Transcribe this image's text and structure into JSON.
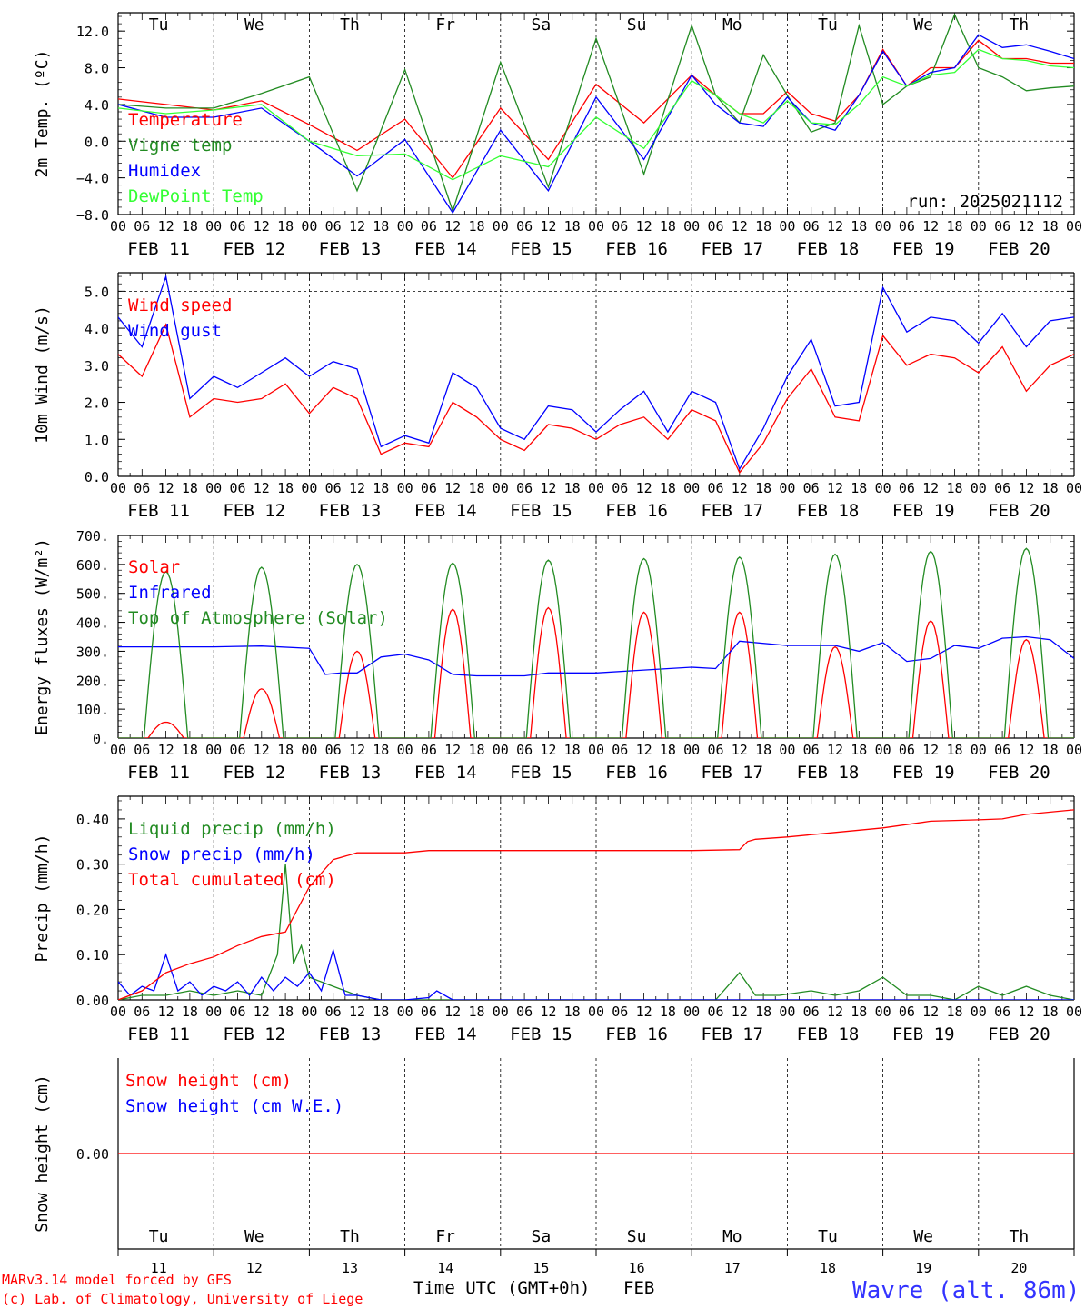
{
  "x_axis": {
    "hour_ticks": [
      "00",
      "06",
      "12",
      "18"
    ],
    "final_tick": "00",
    "dates": [
      "FEB 11",
      "FEB 12",
      "FEB 13",
      "FEB 14",
      "FEB 15",
      "FEB 16",
      "FEB 17",
      "FEB 18",
      "FEB 19",
      "FEB 20"
    ],
    "weekdays": [
      "Tu",
      "We",
      "Th",
      "Fr",
      "Sa",
      "Su",
      "Mo",
      "Tu",
      "We",
      "Th"
    ],
    "weekend_color": "#ff0000",
    "day_numbers": [
      "11",
      "12",
      "13",
      "14",
      "15",
      "16",
      "17",
      "18",
      "19",
      "20"
    ],
    "time_label": "Time UTC (GMT+0h)",
    "month_label": "FEB"
  },
  "footer": {
    "model": "MARv3.14 model forced by GFS",
    "credit": "(c) Lab. of Climatology, University of Liege",
    "station": "Wavre (alt. 86m)"
  },
  "colors": {
    "red": "#ff0000",
    "green": "#228b22",
    "blue": "#0000ff",
    "light_green": "#33ff33",
    "axis": "#000000"
  },
  "chart_data": [
    {
      "type": "line",
      "id": "temperature",
      "ylabel": "2m Temp. (ºC)",
      "ylim": [
        -8,
        14
      ],
      "ytick_values": [
        -8,
        -4,
        0,
        4,
        8,
        12
      ],
      "ytick_labels": [
        "−8.0",
        "−4.0",
        "0.0",
        "4.0",
        "8.0",
        "12.0"
      ],
      "dashed_hlines": [
        0
      ],
      "annotation": "run: 2025021112",
      "x_hours": [
        0,
        12,
        24,
        36,
        48,
        60,
        72,
        84,
        96,
        108,
        120,
        132,
        144,
        150,
        156,
        162,
        168,
        174,
        180,
        186,
        192,
        198,
        204,
        210,
        216,
        222,
        228,
        234,
        240
      ],
      "series": [
        {
          "name": "Temperature",
          "color": "#ff0000",
          "values": [
            4.6,
            4.0,
            3.4,
            4.4,
            1.8,
            -1.0,
            2.4,
            -4.0,
            3.6,
            -2.0,
            6.2,
            2.0,
            7.2,
            5.0,
            3.0,
            3.0,
            5.4,
            3.0,
            2.2,
            5.0,
            10.0,
            6.0,
            8.0,
            8.0,
            11.0,
            9.0,
            9.0,
            8.5,
            8.5
          ]
        },
        {
          "name": "Vigne temp",
          "color": "#228b22",
          "values": [
            4.0,
            3.6,
            3.6,
            5.2,
            7.0,
            -5.4,
            7.8,
            -7.6,
            8.6,
            -5.0,
            11.2,
            -3.6,
            12.6,
            5.0,
            2.0,
            9.4,
            5.0,
            1.0,
            2.0,
            12.6,
            4.0,
            6.0,
            7.0,
            13.8,
            8.0,
            7.0,
            5.5,
            5.8,
            6.0
          ]
        },
        {
          "name": "Humidex",
          "color": "#0000ff",
          "values": [
            4.0,
            2.6,
            2.6,
            3.6,
            0.0,
            -3.8,
            0.2,
            -7.8,
            1.2,
            -5.4,
            4.8,
            -2.0,
            7.2,
            4.0,
            2.0,
            1.6,
            4.8,
            2.0,
            1.2,
            5.0,
            9.8,
            6.0,
            7.5,
            8.0,
            11.6,
            10.2,
            10.5,
            9.8,
            9.0
          ]
        },
        {
          "name": "DewPoint Temp",
          "color": "#33ff33",
          "values": [
            3.6,
            3.0,
            3.4,
            4.0,
            0.0,
            -1.6,
            -1.4,
            -4.2,
            -1.6,
            -2.8,
            2.6,
            -0.8,
            6.6,
            5.0,
            3.0,
            2.0,
            4.4,
            2.0,
            1.8,
            4.0,
            7.0,
            6.0,
            7.2,
            7.5,
            10.0,
            9.0,
            8.8,
            8.2,
            8.0
          ]
        }
      ]
    },
    {
      "type": "line",
      "id": "wind",
      "ylabel": "10m Wind (m/s)",
      "ylim": [
        0,
        5.5
      ],
      "ytick_values": [
        0,
        1,
        2,
        3,
        4,
        5
      ],
      "ytick_labels": [
        "0.0",
        "1.0",
        "2.0",
        "3.0",
        "4.0",
        "5.0"
      ],
      "dashed_hlines": [
        5
      ],
      "x_hours": [
        0,
        6,
        12,
        18,
        24,
        30,
        36,
        42,
        48,
        54,
        60,
        66,
        72,
        78,
        84,
        90,
        96,
        102,
        108,
        114,
        120,
        126,
        132,
        138,
        144,
        150,
        156,
        162,
        168,
        174,
        180,
        186,
        192,
        198,
        204,
        210,
        216,
        222,
        228,
        234,
        240
      ],
      "series": [
        {
          "name": "Wind speed",
          "color": "#ff0000",
          "values": [
            3.3,
            2.7,
            4.1,
            1.6,
            2.1,
            2.0,
            2.1,
            2.5,
            1.7,
            2.4,
            2.1,
            0.6,
            0.9,
            0.8,
            2.0,
            1.6,
            1.0,
            0.7,
            1.4,
            1.3,
            1.0,
            1.4,
            1.6,
            1.0,
            1.8,
            1.5,
            0.1,
            0.9,
            2.1,
            2.9,
            1.6,
            1.5,
            3.8,
            3.0,
            3.3,
            3.2,
            2.8,
            3.5,
            2.3,
            3.0,
            3.3
          ]
        },
        {
          "name": "Wind gust",
          "color": "#0000ff",
          "values": [
            4.3,
            3.5,
            5.4,
            2.1,
            2.7,
            2.4,
            2.8,
            3.2,
            2.7,
            3.1,
            2.9,
            0.8,
            1.1,
            0.9,
            2.8,
            2.4,
            1.3,
            1.0,
            1.9,
            1.8,
            1.2,
            1.8,
            2.3,
            1.2,
            2.3,
            2.0,
            0.2,
            1.3,
            2.7,
            3.7,
            1.9,
            2.0,
            5.1,
            3.9,
            4.3,
            4.2,
            3.6,
            4.4,
            3.5,
            4.2,
            4.3
          ]
        }
      ]
    },
    {
      "type": "line",
      "id": "energy",
      "ylabel": "Energy fluxes (W/m²)",
      "ylim": [
        0,
        700
      ],
      "ytick_values": [
        0,
        100,
        200,
        300,
        400,
        500,
        600,
        700
      ],
      "ytick_labels": [
        "0.",
        "100.",
        "200.",
        "300.",
        "400.",
        "500.",
        "600.",
        "700."
      ],
      "peak_hour": 12,
      "toa_half_width_hours": 5.5,
      "solar_half_width_hours": 4.5,
      "series": [
        {
          "name": "Solar",
          "color": "#ff0000",
          "daily_peaks": [
            55,
            170,
            300,
            445,
            450,
            435,
            435,
            315,
            405,
            340
          ]
        },
        {
          "name": "Infrared",
          "color": "#0000ff",
          "x_hours": [
            0,
            12,
            24,
            36,
            48,
            52,
            56,
            60,
            66,
            72,
            78,
            84,
            90,
            96,
            102,
            108,
            112,
            120,
            132,
            144,
            150,
            156,
            168,
            180,
            186,
            192,
            198,
            204,
            210,
            216,
            222,
            228,
            234,
            240
          ],
          "values": [
            315,
            315,
            315,
            318,
            310,
            220,
            225,
            225,
            280,
            290,
            270,
            220,
            215,
            215,
            215,
            225,
            225,
            225,
            235,
            245,
            240,
            335,
            320,
            320,
            300,
            330,
            265,
            275,
            320,
            310,
            345,
            350,
            340,
            275
          ]
        },
        {
          "name": "Top of Atmosphere (Solar)",
          "color": "#228b22",
          "daily_peaks": [
            575,
            590,
            600,
            605,
            615,
            620,
            625,
            635,
            645,
            655
          ]
        }
      ]
    },
    {
      "type": "line",
      "id": "precip",
      "ylabel": "Precip (mm/h)",
      "ylim": [
        0,
        0.45
      ],
      "ytick_values": [
        0,
        0.1,
        0.2,
        0.3,
        0.4
      ],
      "ytick_labels": [
        "0.00",
        "0.10",
        "0.20",
        "0.30",
        "0.40"
      ],
      "series": [
        {
          "name": "Liquid precip (mm/h)",
          "color": "#228b22",
          "x_hours": [
            0,
            6,
            12,
            18,
            24,
            30,
            36,
            40,
            42,
            44,
            46,
            48,
            54,
            60,
            66,
            72,
            78,
            84,
            96,
            108,
            120,
            132,
            150,
            156,
            160,
            166,
            174,
            180,
            186,
            192,
            198,
            204,
            210,
            216,
            222,
            228,
            234,
            240
          ],
          "values": [
            0,
            0.01,
            0.01,
            0.02,
            0.01,
            0.02,
            0.01,
            0.1,
            0.3,
            0.08,
            0.12,
            0.05,
            0.03,
            0.01,
            0,
            0,
            0,
            0,
            0,
            0,
            0,
            0,
            0,
            0.06,
            0.01,
            0.01,
            0.02,
            0.01,
            0.02,
            0.05,
            0.01,
            0.01,
            0,
            0.03,
            0.01,
            0.03,
            0.01,
            0
          ]
        },
        {
          "name": "Snow precip (mm/h)",
          "color": "#0000ff",
          "x_hours": [
            0,
            3,
            6,
            9,
            12,
            15,
            18,
            21,
            24,
            27,
            30,
            33,
            36,
            39,
            42,
            45,
            48,
            51,
            54,
            57,
            60,
            66,
            72,
            78,
            80,
            84,
            96,
            120,
            144,
            168,
            192,
            216,
            240
          ],
          "values": [
            0.04,
            0.01,
            0.03,
            0.02,
            0.1,
            0.02,
            0.04,
            0.01,
            0.03,
            0.02,
            0.04,
            0.01,
            0.05,
            0.02,
            0.05,
            0.03,
            0.06,
            0.02,
            0.11,
            0.01,
            0.01,
            0,
            0,
            0.005,
            0.02,
            0,
            0,
            0,
            0,
            0,
            0,
            0,
            0
          ]
        },
        {
          "name": "Total cumulated (cm)",
          "color": "#ff0000",
          "x_hours": [
            0,
            6,
            12,
            18,
            24,
            30,
            36,
            42,
            48,
            54,
            60,
            72,
            78,
            84,
            96,
            120,
            144,
            156,
            158,
            160,
            168,
            180,
            186,
            192,
            204,
            216,
            222,
            228,
            234,
            240
          ],
          "values": [
            0,
            0.02,
            0.06,
            0.08,
            0.095,
            0.12,
            0.14,
            0.15,
            0.25,
            0.31,
            0.325,
            0.325,
            0.33,
            0.33,
            0.33,
            0.33,
            0.33,
            0.332,
            0.35,
            0.355,
            0.36,
            0.37,
            0.375,
            0.38,
            0.395,
            0.398,
            0.4,
            0.41,
            0.415,
            0.42
          ]
        }
      ]
    },
    {
      "type": "line",
      "id": "snow",
      "ylabel": "Snow height (cm)",
      "ylim": [
        -1,
        1
      ],
      "ytick_values": [
        0
      ],
      "ytick_labels": [
        "0.00"
      ],
      "series": [
        {
          "name": "Snow height (cm)",
          "color": "#ff0000",
          "values": [
            0,
            0
          ]
        },
        {
          "name": "Snow height (cm W.E.)",
          "color": "#0000ff",
          "values": []
        }
      ]
    }
  ]
}
